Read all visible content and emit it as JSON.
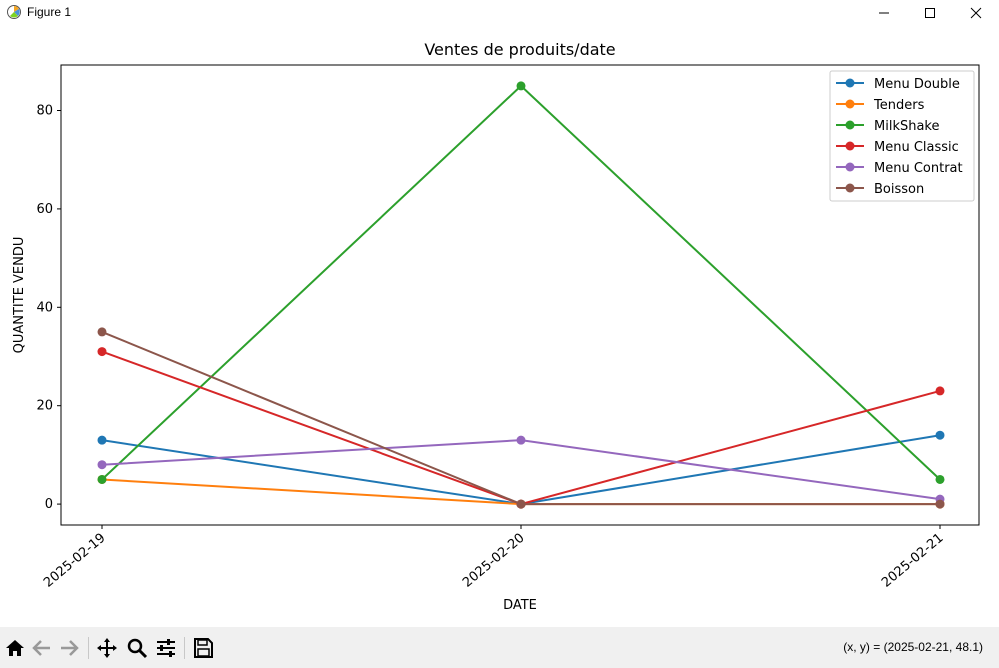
{
  "window": {
    "title": "Figure 1"
  },
  "toolbar": {
    "coords": "(x, y) = (2025-02-21, 48.1)"
  },
  "chart_data": {
    "type": "line",
    "title": "Ventes de produits/date",
    "xlabel": "DATE",
    "ylabel": "QUANTITE VENDU",
    "categories": [
      "2025-02-19",
      "2025-02-20",
      "2025-02-21"
    ],
    "yticks": [
      0,
      20,
      40,
      60,
      80
    ],
    "ylim": [
      -4.25,
      89.25
    ],
    "grid": false,
    "legend_position": "top-right",
    "series": [
      {
        "name": "Menu Double",
        "color": "#1f77b4",
        "values": [
          13,
          0,
          14
        ]
      },
      {
        "name": "Tenders",
        "color": "#ff7f0e",
        "values": [
          5,
          0,
          0
        ]
      },
      {
        "name": "MilkShake",
        "color": "#2ca02c",
        "values": [
          5,
          85,
          5
        ]
      },
      {
        "name": "Menu Classic",
        "color": "#d62728",
        "values": [
          31,
          0,
          23
        ]
      },
      {
        "name": "Menu Contrat",
        "color": "#9467bd",
        "values": [
          8,
          13,
          1
        ]
      },
      {
        "name": "Boisson",
        "color": "#8c564b",
        "values": [
          35,
          0,
          0
        ]
      }
    ]
  }
}
